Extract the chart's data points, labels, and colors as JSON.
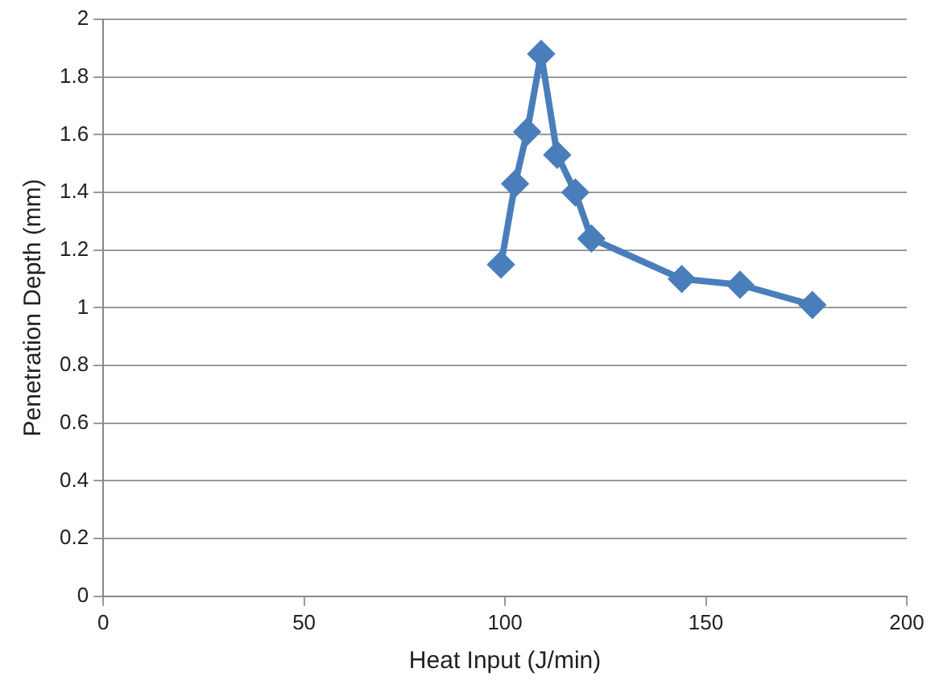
{
  "chart_data": {
    "type": "line",
    "xlabel": "Heat Input (J/min)",
    "ylabel": "Penetration Depth (mm)",
    "x": [
      99,
      102.5,
      105.5,
      109,
      113,
      117.5,
      121.5,
      144,
      158.5,
      176.5
    ],
    "series": [
      {
        "color": "#4a7ebb",
        "values": [
          1.15,
          1.43,
          1.61,
          1.88,
          1.53,
          1.4,
          1.24,
          1.1,
          1.08,
          1.01
        ]
      }
    ],
    "xlim": [
      0,
      200
    ],
    "xticks": [
      0,
      50,
      100,
      150,
      200
    ],
    "ylim": [
      0,
      2
    ],
    "yticks": [
      0,
      0.2,
      0.4,
      0.6,
      0.8,
      1,
      1.2,
      1.4,
      1.6,
      1.8,
      2
    ],
    "grid": "y",
    "legend": false,
    "marker": "diamond",
    "line_style": "solid"
  }
}
